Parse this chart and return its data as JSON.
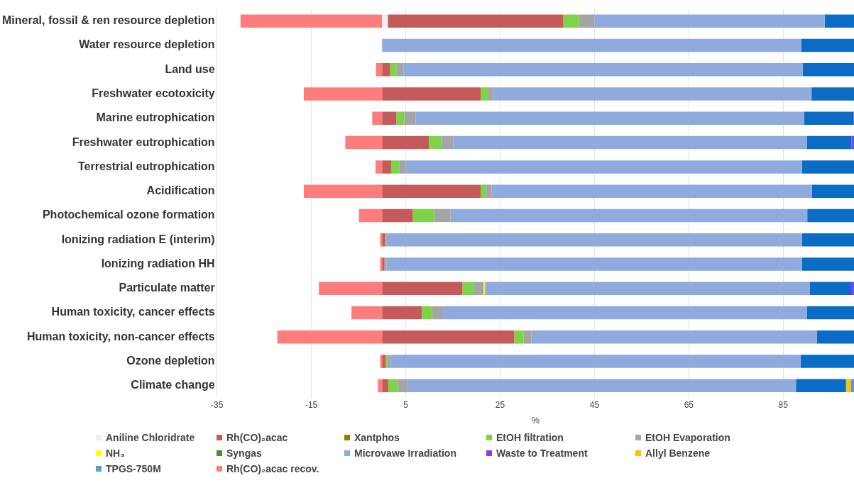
{
  "chart_data": {
    "type": "bar",
    "orientation": "horizontal",
    "stacked": true,
    "xlabel": "%",
    "categories": [
      "Mineral, fossil & ren resource depletion",
      "Water resource depletion",
      "Land use",
      "Freshwater ecotoxicity",
      "Marine eutrophication",
      "Freshwater eutrophication",
      "Terrestrial eutrophication",
      "Acidification",
      "Photochemical ozone formation",
      "Ionizing radiation E (interim)",
      "Ionizing radiation HH",
      "Particulate matter",
      "Human toxicity, cancer effects",
      "Human toxicity, non-cancer effects",
      "Ozone depletion",
      "Climate change"
    ],
    "xlim": [
      -35,
      100
    ],
    "xticks": [
      -35,
      -15,
      5,
      25,
      45,
      65,
      85
    ],
    "grid": "x",
    "legend": "bottom",
    "series": [
      {
        "name": "Aniline Chloridrate",
        "color": "#f0f0f0",
        "values": [
          1.2,
          null,
          null,
          null,
          null,
          null,
          null,
          null,
          null,
          null,
          null,
          null,
          null,
          null,
          null,
          null
        ]
      },
      {
        "name": "Rh(CO)₂acac",
        "color": "#c55a5a",
        "values": [
          37.2,
          null,
          1.7,
          20.9,
          3.0,
          9.9,
          1.9,
          20.9,
          6.5,
          0.6,
          0.5,
          17.0,
          8.4,
          28.0,
          0.7,
          1.3
        ]
      },
      {
        "name": "Xantphos",
        "color": "#9c7a00",
        "values": [
          null,
          null,
          null,
          null,
          null,
          null,
          null,
          null,
          null,
          null,
          null,
          null,
          null,
          null,
          null,
          null
        ]
      },
      {
        "name": "EtOH filtration",
        "color": "#7ed348",
        "values": [
          3.3,
          null,
          1.4,
          1.5,
          1.7,
          2.6,
          1.7,
          1.2,
          4.5,
          null,
          null,
          2.4,
          2.2,
          2.0,
          0.4,
          2.0
        ]
      },
      {
        "name": "EtOH Evaporation",
        "color": "#a5a5a5",
        "values": [
          3.3,
          null,
          1.4,
          1.1,
          2.4,
          2.6,
          1.4,
          1.1,
          3.5,
          0.4,
          0.4,
          2.1,
          2.3,
          1.6,
          0.6,
          2.2
        ]
      },
      {
        "name": "NH₃",
        "color": "#ffff00",
        "values": [
          null,
          null,
          null,
          null,
          null,
          null,
          null,
          null,
          null,
          null,
          null,
          0.3,
          null,
          null,
          null,
          null
        ]
      },
      {
        "name": "Syngas",
        "color": "#4e8b3a",
        "values": [
          null,
          null,
          null,
          null,
          null,
          null,
          null,
          null,
          null,
          null,
          null,
          null,
          null,
          null,
          null,
          null
        ]
      },
      {
        "name": "Microvawe Irradiation",
        "color": "#8faadc",
        "values": [
          48.8,
          88.8,
          84.6,
          67.5,
          82.3,
          74.9,
          84.0,
          67.9,
          75.6,
          88.0,
          88.1,
          68.8,
          77.1,
          60.5,
          87.0,
          82.2
        ]
      },
      {
        "color": "#0a6cc4",
        "values": [
          6.2,
          11.2,
          10.9,
          9.0,
          10.5,
          9.5,
          11.0,
          8.9,
          9.9,
          11.0,
          11.0,
          8.8,
          10.0,
          7.9,
          11.3,
          10.6
        ]
      },
      {
        "name": "Waste to Treatment",
        "color": "#8b3cf7",
        "values": [
          null,
          null,
          null,
          null,
          0.5,
          0.5,
          null,
          null,
          null,
          null,
          null,
          0.6,
          null,
          null,
          null,
          null
        ]
      },
      {
        "name": "Allyl Benzene",
        "color": "#ffc000",
        "values": [
          null,
          null,
          null,
          null,
          null,
          null,
          null,
          null,
          null,
          null,
          null,
          null,
          null,
          null,
          null,
          1.0
        ]
      },
      {
        "name": "TPGS-750M",
        "color": "#5b9bd5",
        "values": [
          null,
          null,
          null,
          null,
          null,
          null,
          null,
          null,
          null,
          null,
          null,
          null,
          null,
          null,
          null,
          0.7
        ]
      },
      {
        "name": "Rh(CO)₂acac recov.",
        "color": "#ff7c7c",
        "values": [
          -30.0,
          null,
          -1.3,
          -16.6,
          -2.1,
          -7.8,
          -1.4,
          -16.6,
          -4.9,
          -0.4,
          -0.4,
          -13.4,
          -6.5,
          -22.2,
          -0.4,
          -0.9
        ]
      }
    ]
  }
}
